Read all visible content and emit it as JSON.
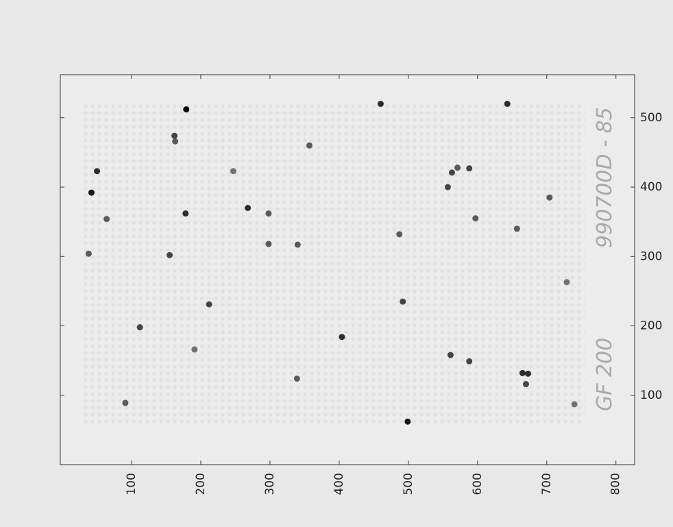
{
  "chart_data": {
    "type": "image",
    "xlim": [
      -3,
      827
    ],
    "ylim": [
      0,
      562
    ],
    "xticks": [
      100,
      200,
      300,
      400,
      500,
      600,
      700,
      800
    ],
    "yticks": [
      100,
      200,
      300,
      400,
      500
    ],
    "annotations": [
      "GF 200",
      "990700D - 85"
    ],
    "x": [
      179,
      42,
      50,
      38,
      64,
      155,
      162,
      163,
      178,
      268,
      298,
      298,
      247,
      340,
      357,
      460,
      487,
      499,
      492,
      404,
      339,
      212,
      112,
      91,
      191,
      557,
      563,
      571,
      588,
      597,
      643,
      657,
      665,
      673,
      670,
      704,
      588,
      561,
      740,
      729
    ],
    "y": [
      512,
      392,
      423,
      304,
      354,
      302,
      474,
      466,
      362,
      370,
      318,
      362,
      423,
      317,
      460,
      520,
      332,
      62,
      235,
      184,
      124,
      231,
      198,
      89,
      166,
      400,
      421,
      428,
      427,
      355,
      520,
      340,
      132,
      131,
      116,
      385,
      149,
      158,
      87,
      263
    ],
    "values": [
      1.0,
      0.9,
      0.8,
      0.6,
      0.6,
      0.7,
      0.7,
      0.6,
      0.8,
      0.8,
      0.6,
      0.6,
      0.5,
      0.6,
      0.6,
      0.8,
      0.6,
      0.9,
      0.7,
      0.8,
      0.6,
      0.7,
      0.7,
      0.6,
      0.5,
      0.7,
      0.7,
      0.6,
      0.7,
      0.6,
      0.8,
      0.6,
      0.8,
      0.8,
      0.7,
      0.6,
      0.7,
      0.7,
      0.5,
      0.5
    ]
  }
}
